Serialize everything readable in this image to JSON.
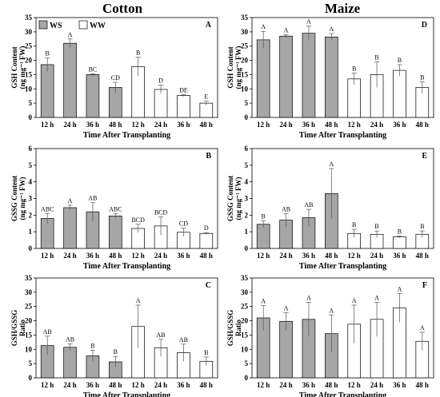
{
  "titles": {
    "left": "Cotton",
    "right": "Maize"
  },
  "legend": [
    {
      "label": "WS",
      "color": "#a6a6a6"
    },
    {
      "label": "WW",
      "color": "#ffffff"
    }
  ],
  "colors": {
    "ws": "#a6a6a6",
    "ww": "#ffffff",
    "stroke": "#000000"
  },
  "chart_data": [
    {
      "type": "bar",
      "panel": "A",
      "ylabel_lines": [
        "GSH Content",
        "(ng mg⁻¹ FW)"
      ],
      "xlabel": "Time After Transplanting",
      "categories": [
        "12 h",
        "24 h",
        "36 h",
        "48 h",
        "12 h",
        "24 h",
        "36 h",
        "48 h"
      ],
      "ylim": [
        0,
        35
      ],
      "yticks": [
        0,
        5,
        10,
        15,
        20,
        25,
        30,
        35
      ],
      "values": [
        18.5,
        26.0,
        15.0,
        10.5,
        17.8,
        9.8,
        7.7,
        5.0
      ],
      "errors": [
        2.3,
        1.5,
        0.3,
        1.8,
        3.3,
        1.5,
        0.3,
        0.7
      ],
      "letters": [
        "B",
        "A",
        "BC",
        "CD",
        "B",
        "D",
        "DE",
        "E"
      ],
      "groups": [
        "WS",
        "WS",
        "WS",
        "WS",
        "WW",
        "WW",
        "WW",
        "WW"
      ]
    },
    {
      "type": "bar",
      "panel": "D",
      "ylabel_lines": [
        "GSH Content",
        "(ng mg⁻¹ FW)"
      ],
      "xlabel": "Time After Transplanting",
      "categories": [
        "12 h",
        "24 h",
        "36 h",
        "48 h",
        "12 h",
        "24 h",
        "36 h",
        "48 h"
      ],
      "ylim": [
        0,
        35
      ],
      "yticks": [
        0,
        5,
        10,
        15,
        20,
        25,
        30,
        35
      ],
      "values": [
        27.2,
        28.5,
        29.5,
        28.2,
        13.5,
        15.0,
        16.5,
        10.5
      ],
      "errors": [
        3.0,
        0.5,
        2.5,
        1.2,
        2.0,
        4.5,
        2.0,
        2.0
      ],
      "letters": [
        "A",
        "A",
        "A",
        "A",
        "B",
        "B",
        "B",
        "B"
      ],
      "groups": [
        "WS",
        "WS",
        "WS",
        "WS",
        "WW",
        "WW",
        "WW",
        "WW"
      ]
    },
    {
      "type": "bar",
      "panel": "B",
      "ylabel_lines": [
        "GSSG Content",
        "(ng mg⁻¹ FW)"
      ],
      "xlabel": "Time After Transplanting",
      "categories": [
        "12 h",
        "24 h",
        "36 h",
        "48 h",
        "12 h",
        "24 h",
        "36 h",
        "48 h"
      ],
      "ylim": [
        0,
        6
      ],
      "yticks": [
        0,
        1,
        2,
        3,
        4,
        5,
        6
      ],
      "values": [
        1.8,
        2.45,
        2.2,
        1.95,
        1.2,
        1.35,
        0.97,
        0.9
      ],
      "errors": [
        0.3,
        0.15,
        0.55,
        0.15,
        0.25,
        0.55,
        0.25,
        0.05
      ],
      "letters": [
        "ABC",
        "A",
        "AB",
        "ABC",
        "BCD",
        "BCD",
        "CD",
        "D"
      ],
      "groups": [
        "WS",
        "WS",
        "WS",
        "WS",
        "WW",
        "WW",
        "WW",
        "WW"
      ]
    },
    {
      "type": "bar",
      "panel": "E",
      "ylabel_lines": [
        "GSSG Content",
        "(ng mg⁻¹ FW)"
      ],
      "xlabel": "Time After Transplanting",
      "categories": [
        "12 h",
        "24 h",
        "36 h",
        "48 h",
        "12 h",
        "24 h",
        "36 h",
        "48 h"
      ],
      "ylim": [
        0,
        6
      ],
      "yticks": [
        0,
        1,
        2,
        3,
        4,
        5,
        6
      ],
      "values": [
        1.45,
        1.7,
        1.85,
        3.3,
        0.9,
        0.85,
        0.7,
        0.85
      ],
      "errors": [
        0.2,
        0.4,
        0.5,
        1.5,
        0.25,
        0.2,
        0.05,
        0.2
      ],
      "letters": [
        "B",
        "AB",
        "AB",
        "A",
        "B",
        "B",
        "B",
        "B"
      ],
      "groups": [
        "WS",
        "WS",
        "WS",
        "WS",
        "WW",
        "WW",
        "WW",
        "WW"
      ]
    },
    {
      "type": "bar",
      "panel": "C",
      "ylabel_lines": [
        "GSH/GSSG",
        "Ratio"
      ],
      "xlabel": "Time After Transplanting",
      "categories": [
        "12 h",
        "24 h",
        "36 h",
        "48 h",
        "12 h",
        "24 h",
        "36 h",
        "48 h"
      ],
      "ylim": [
        0,
        35
      ],
      "yticks": [
        0,
        5,
        10,
        15,
        20,
        25,
        30,
        35
      ],
      "values": [
        11.3,
        10.7,
        7.7,
        5.6,
        18.0,
        10.5,
        8.8,
        5.8
      ],
      "errors": [
        3.3,
        1.2,
        2.0,
        1.9,
        7.5,
        3.0,
        3.0,
        1.5
      ],
      "letters": [
        "AB",
        "AB",
        "B",
        "B",
        "A",
        "AB",
        "AB",
        "B"
      ],
      "groups": [
        "WS",
        "WS",
        "WS",
        "WS",
        "WW",
        "WW",
        "WW",
        "WW"
      ]
    },
    {
      "type": "bar",
      "panel": "F",
      "ylabel_lines": [
        "GSH/GSSG",
        "Ratio"
      ],
      "xlabel": "Time After Transplanting",
      "categories": [
        "12 h",
        "24 h",
        "36 h",
        "48 h",
        "12 h",
        "24 h",
        "36 h",
        "48 h"
      ],
      "ylim": [
        0,
        35
      ],
      "yticks": [
        0,
        5,
        10,
        15,
        20,
        25,
        30,
        35
      ],
      "values": [
        21.0,
        19.8,
        20.5,
        15.5,
        18.8,
        20.5,
        24.5,
        12.8
      ],
      "errors": [
        4.3,
        3.0,
        6.0,
        6.5,
        6.7,
        6.0,
        5.0,
        3.2
      ],
      "letters": [
        "A",
        "A",
        "A",
        "A",
        "A",
        "A",
        "A",
        "A"
      ],
      "groups": [
        "WS",
        "WS",
        "WS",
        "WS",
        "WW",
        "WW",
        "WW",
        "WW"
      ]
    }
  ]
}
